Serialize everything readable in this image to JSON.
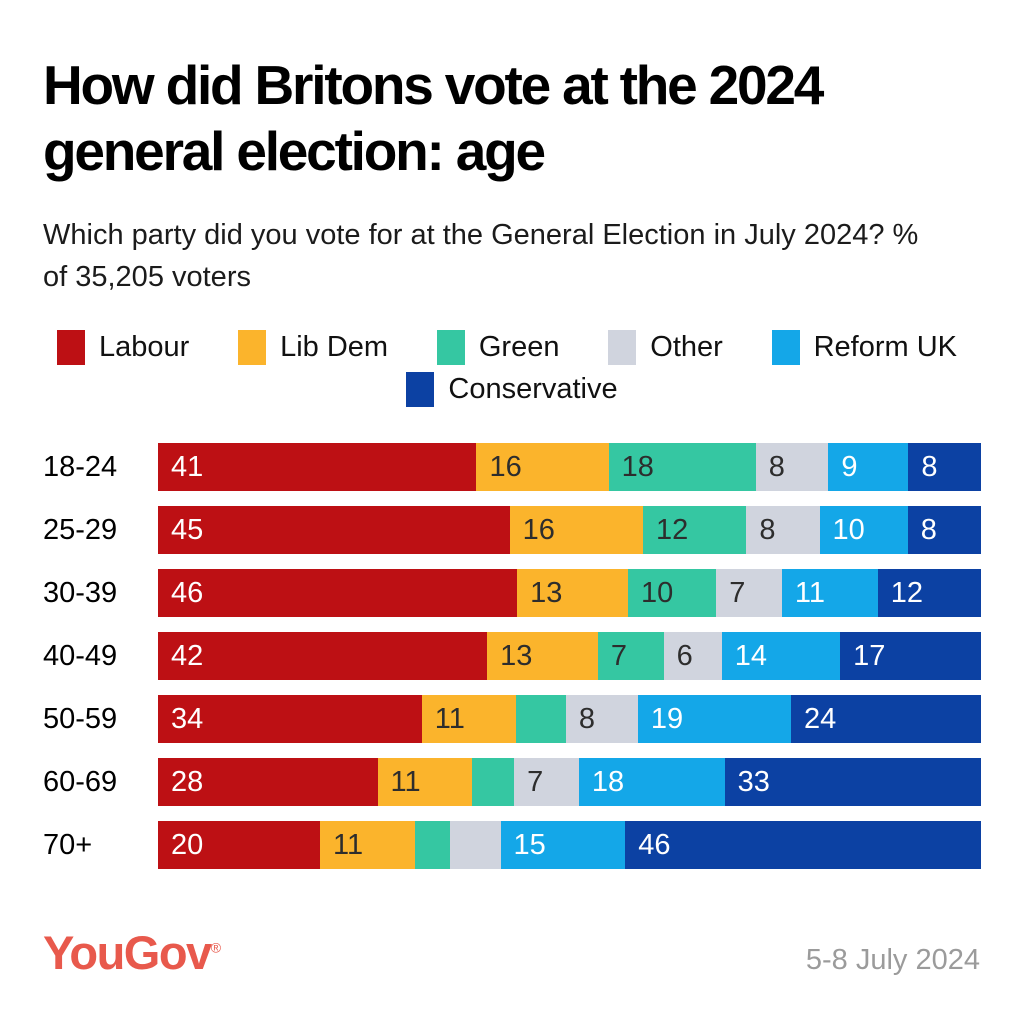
{
  "title": "How did Britons vote at the 2024 general election: age",
  "subtitle": "Which party did you vote for at the General Election in July 2024? % of 35,205 voters",
  "footer": {
    "logo_text": "YouGov",
    "registered_mark": "®",
    "date": "5-8 July 2024",
    "logo_color": "#e8594c",
    "date_color": "#9b9b9b"
  },
  "chart_data": {
    "type": "bar",
    "stacked": true,
    "orientation": "horizontal",
    "xlim": [
      0,
      100
    ],
    "grid": false,
    "legend_position": "top",
    "label_min_value": 6,
    "categories": [
      "18-24",
      "25-29",
      "30-39",
      "40-49",
      "50-59",
      "60-69",
      "70+"
    ],
    "series": [
      {
        "name": "Labour",
        "color": "#bd1014",
        "text_color": "#ffffff",
        "values": [
          41,
          45,
          46,
          42,
          34,
          28,
          20
        ]
      },
      {
        "name": "Lib Dem",
        "color": "#fbb42c",
        "text_color": "#2d2d2d",
        "values": [
          16,
          16,
          13,
          13,
          11,
          11,
          11
        ]
      },
      {
        "name": "Green",
        "color": "#35c7a2",
        "text_color": "#2d2d2d",
        "values": [
          18,
          12,
          10,
          7,
          5,
          4,
          3
        ]
      },
      {
        "name": "Other",
        "color": "#d0d4de",
        "text_color": "#2d2d2d",
        "values": [
          8,
          8,
          7,
          6,
          8,
          7,
          5
        ]
      },
      {
        "name": "Reform UK",
        "color": "#14a7e8",
        "text_color": "#ffffff",
        "values": [
          9,
          10,
          11,
          14,
          19,
          18,
          15
        ]
      },
      {
        "name": "Conservative",
        "color": "#0c41a3",
        "text_color": "#ffffff",
        "values": [
          8,
          8,
          12,
          17,
          24,
          33,
          46
        ]
      }
    ]
  }
}
